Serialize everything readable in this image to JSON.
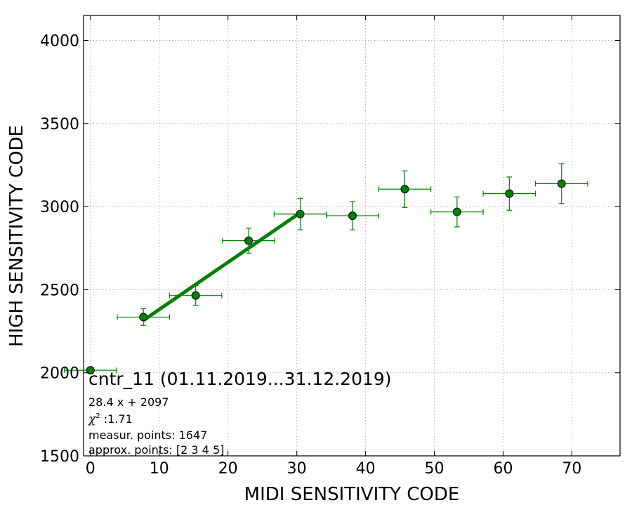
{
  "chart_data": {
    "type": "scatter",
    "xlabel": "MIDI SENSITIVITY CODE",
    "ylabel": "HIGH SENSITIVITY CODE",
    "xlim": [
      -1,
      77
    ],
    "ylim": [
      1500,
      4150
    ],
    "x_ticks": [
      0,
      10,
      20,
      30,
      40,
      50,
      60,
      70
    ],
    "y_ticks": [
      1500,
      2000,
      2500,
      3000,
      3500,
      4000
    ],
    "grid": true,
    "grid_style": "dotted",
    "colors": {
      "marker": "#008000",
      "errorbar": "#008000",
      "fit_line": "#008000"
    },
    "series": [
      {
        "points": [
          {
            "x": 0,
            "y": 2015,
            "xerr": 3.8,
            "yerr": 0
          },
          {
            "x": 7.7,
            "y": 2335,
            "xerr": 3.8,
            "yerr": 50
          },
          {
            "x": 15.3,
            "y": 2465,
            "xerr": 3.8,
            "yerr": 60
          },
          {
            "x": 23.0,
            "y": 2795,
            "xerr": 3.8,
            "yerr": 75
          },
          {
            "x": 30.5,
            "y": 2955,
            "xerr": 3.8,
            "yerr": 95
          },
          {
            "x": 38.1,
            "y": 2945,
            "xerr": 3.8,
            "yerr": 85
          },
          {
            "x": 45.7,
            "y": 3105,
            "xerr": 3.8,
            "yerr": 110
          },
          {
            "x": 53.3,
            "y": 2968,
            "xerr": 3.8,
            "yerr": 90
          },
          {
            "x": 60.9,
            "y": 3078,
            "xerr": 3.8,
            "yerr": 100
          },
          {
            "x": 68.5,
            "y": 3138,
            "xerr": 3.8,
            "yerr": 120
          }
        ]
      }
    ],
    "fit": {
      "slope": 28.4,
      "intercept": 2097,
      "x_range": [
        7.7,
        30.5
      ]
    },
    "annotations": {
      "title": "cntr_11 (01.11.2019...31.12.2019)",
      "equation": "28.4 x + 2097",
      "chi_symbol": "χ",
      "chi_exp": "2",
      "chi_value": " :1.71",
      "measur": "measur. points: 1647",
      "approx": "approx. points: [2 3 4 5]"
    }
  }
}
